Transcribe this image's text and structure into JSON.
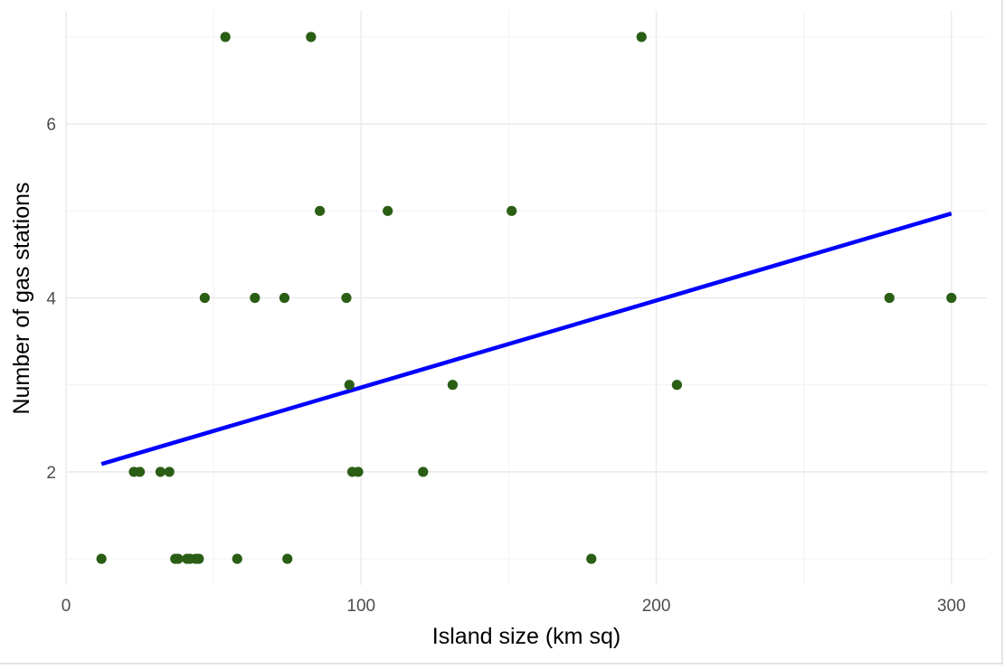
{
  "chart_data": {
    "type": "scatter",
    "title": "",
    "xlabel": "Island size (km sq)",
    "ylabel": "Number of gas stations",
    "xlim": [
      0,
      312
    ],
    "ylim": [
      0.7,
      7.3
    ],
    "x_ticks": [
      0,
      100,
      200,
      300
    ],
    "x_minor_ticks": [
      50,
      150,
      250
    ],
    "y_ticks": [
      2,
      4,
      6
    ],
    "y_minor_ticks": [
      1,
      3,
      5,
      7
    ],
    "x_tick_labels": [
      "0",
      "100",
      "200",
      "300"
    ],
    "y_tick_labels": [
      "2",
      "4",
      "6"
    ],
    "grid": true,
    "legend": "none",
    "point_color": "#2a5e15",
    "line_color": "#0000ff",
    "points": [
      {
        "x": 12,
        "y": 1
      },
      {
        "x": 23,
        "y": 2
      },
      {
        "x": 25,
        "y": 2
      },
      {
        "x": 32,
        "y": 2
      },
      {
        "x": 35,
        "y": 2
      },
      {
        "x": 37,
        "y": 1
      },
      {
        "x": 38,
        "y": 1
      },
      {
        "x": 41,
        "y": 1
      },
      {
        "x": 42,
        "y": 1
      },
      {
        "x": 44,
        "y": 1
      },
      {
        "x": 45,
        "y": 1
      },
      {
        "x": 47,
        "y": 4
      },
      {
        "x": 54,
        "y": 7
      },
      {
        "x": 58,
        "y": 1
      },
      {
        "x": 64,
        "y": 4
      },
      {
        "x": 74,
        "y": 4
      },
      {
        "x": 75,
        "y": 1
      },
      {
        "x": 83,
        "y": 7
      },
      {
        "x": 86,
        "y": 5
      },
      {
        "x": 95,
        "y": 4
      },
      {
        "x": 96,
        "y": 3
      },
      {
        "x": 97,
        "y": 2
      },
      {
        "x": 99,
        "y": 2
      },
      {
        "x": 109,
        "y": 5
      },
      {
        "x": 121,
        "y": 2
      },
      {
        "x": 131,
        "y": 3
      },
      {
        "x": 151,
        "y": 5
      },
      {
        "x": 178,
        "y": 1
      },
      {
        "x": 195,
        "y": 7
      },
      {
        "x": 207,
        "y": 3
      },
      {
        "x": 279,
        "y": 4
      },
      {
        "x": 300,
        "y": 4
      }
    ],
    "trend_line": {
      "x": [
        12,
        300
      ],
      "y": [
        2.09,
        4.97
      ]
    }
  }
}
